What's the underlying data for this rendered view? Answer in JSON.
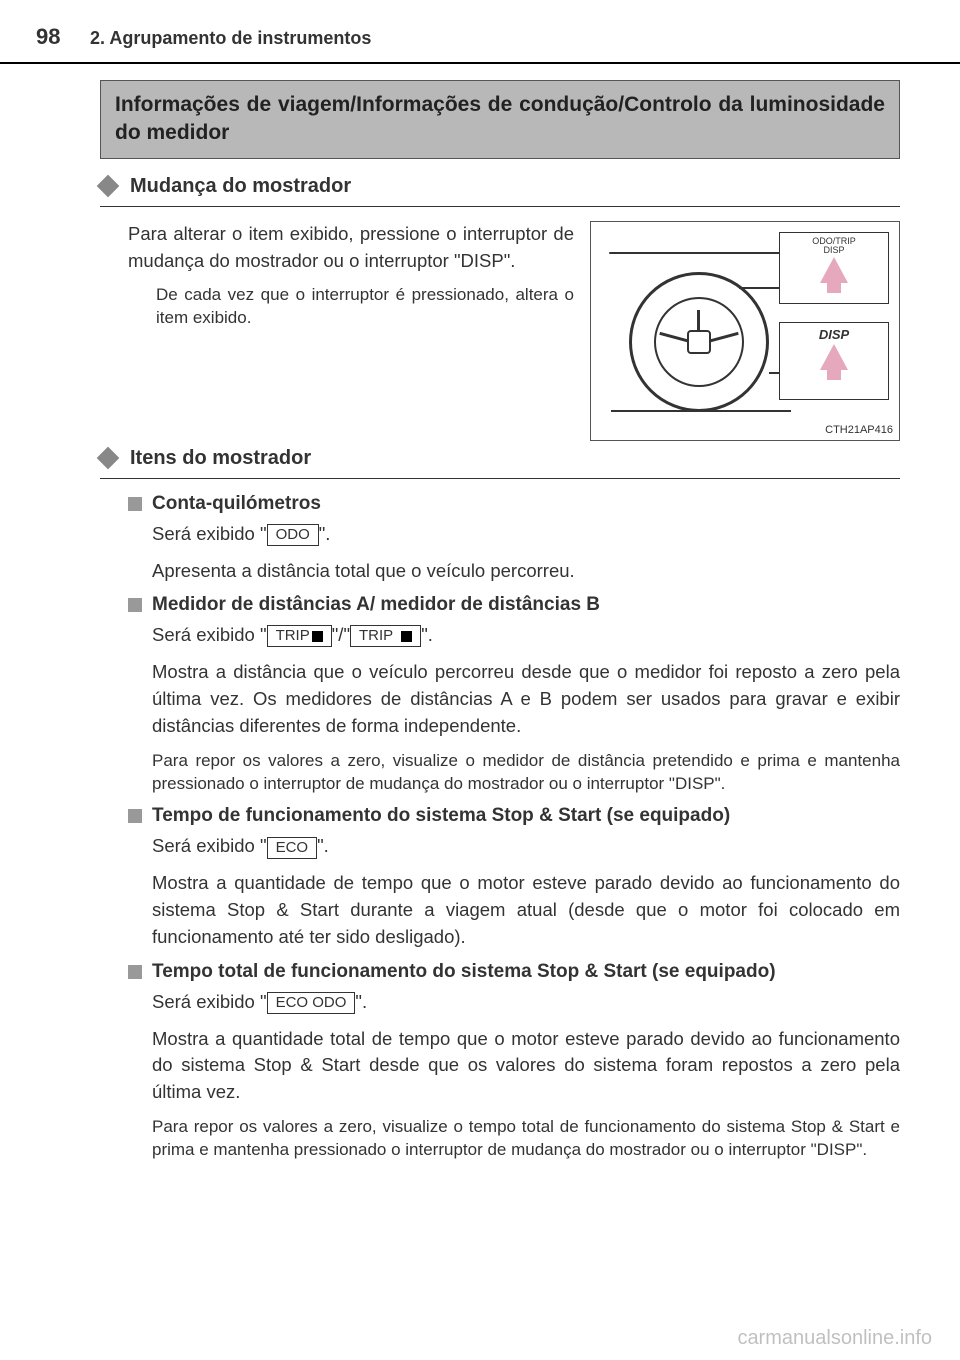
{
  "page_number": "98",
  "header_section": "2. Agrupamento de instrumentos",
  "section_box": "Informações de viagem/Informações de condução/Controlo da luminosidade do medidor",
  "sub1_title": "Mudança do mostrador",
  "sub1_main": "Para alterar o item exibido, pressione o interruptor de mudança do mostrador ou o interruptor \"DISP\".",
  "sub1_sub": "De cada vez que o interruptor é pressionado, altera o item exibido.",
  "illus": {
    "callout1_line1": "ODO/TRIP",
    "callout1_line2": "DISP",
    "callout2_label": "DISP",
    "code": "CTH21AP416"
  },
  "sub2_title": "Itens do mostrador",
  "items": [
    {
      "title": "Conta-quilómetros",
      "line1_a": "Será exibido \"",
      "tag1": "ODO",
      "line1_b": "\".",
      "body1": "Apresenta a distância total que o veículo percorreu."
    },
    {
      "title": "Medidor de distâncias A/ medidor de distâncias B",
      "line1_a": "Será exibido \"",
      "tagA": "TRIP",
      "mid": "\"/\"",
      "tagB": "TRIP",
      "line1_b": "\".",
      "body1": "Mostra a distância que o veículo percorreu desde que o medidor foi reposto a zero pela última vez. Os medidores de distâncias A e B podem ser usados para gravar e exibir distâncias diferentes de forma independente.",
      "body2": "Para repor os valores a zero, visualize o medidor de distância pretendido e prima e mantenha pressionado o interruptor de mudança do mostrador ou o interruptor \"DISP\"."
    },
    {
      "title": "Tempo de funcionamento do sistema Stop & Start (se equipado)",
      "line1_a": "Será exibido \"",
      "tag1": "ECO",
      "line1_b": "\".",
      "body1": "Mostra a quantidade de tempo que o motor esteve parado devido ao funcionamento do sistema Stop & Start durante a viagem atual (desde que o motor foi colocado em funcionamento até ter sido desligado)."
    },
    {
      "title": "Tempo total de funcionamento do sistema Stop & Start (se equipado)",
      "line1_a": "Será exibido \"",
      "tag1": "ECO ODO",
      "line1_b": "\".",
      "body1": "Mostra a quantidade total de tempo que o motor esteve parado devido ao funcionamento do sistema Stop & Start desde que os valores do sistema foram repostos a zero pela última vez.",
      "body2": "Para repor os valores a zero, visualize o tempo total de funcionamento do sistema Stop & Start e prima e mantenha pressionado o interruptor de mudança do mostrador ou o interruptor \"DISP\"."
    }
  ],
  "watermark": "carmanualsonline.info"
}
